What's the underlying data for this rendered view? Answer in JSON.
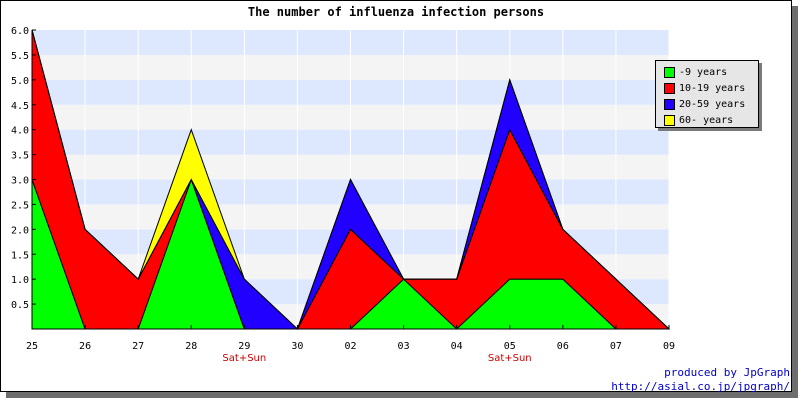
{
  "chart_data": {
    "type": "area",
    "stacked": true,
    "title": "The number of influenza infection persons",
    "categories": [
      "25",
      "26",
      "27",
      "28",
      "29",
      "30",
      "02",
      "03",
      "04",
      "05",
      "06",
      "07",
      "09"
    ],
    "weekend_labels": [
      {
        "index": 4,
        "text": "Sat+Sun"
      },
      {
        "index": 9,
        "text": "Sat+Sun"
      }
    ],
    "series": [
      {
        "name": "-9 years",
        "color": "#00ff00",
        "values": [
          3,
          0,
          0,
          3,
          0,
          0,
          0,
          1,
          0,
          1,
          1,
          0,
          0
        ]
      },
      {
        "name": "10-19 years",
        "color": "#ff0000",
        "values": [
          3,
          2,
          1,
          0,
          0,
          0,
          2,
          0,
          1,
          3,
          1,
          1,
          0
        ]
      },
      {
        "name": "20-59 years",
        "color": "#2200ff",
        "values": [
          0,
          0,
          0,
          0,
          1,
          0,
          1,
          0,
          0,
          1,
          0,
          0,
          0
        ]
      },
      {
        "name": "60- years",
        "color": "#ffff00",
        "values": [
          0,
          0,
          0,
          1,
          0,
          0,
          0,
          0,
          0,
          0,
          0,
          0,
          0
        ]
      }
    ],
    "ylim": [
      0,
      6
    ],
    "yticks": [
      "6.0",
      "5.5",
      "5.0",
      "4.5",
      "4.0",
      "3.5",
      "3.0",
      "2.5",
      "2.0",
      "1.5",
      "1.0",
      "0.5"
    ],
    "legend_position": "right",
    "band_colors": [
      "#dde8ff",
      "#f4f4f4"
    ],
    "weekend_label_color": "#cc0000"
  },
  "credits": {
    "line1": "produced by JpGraph",
    "line2": "http://asial.co.jp/jpgraph/"
  }
}
